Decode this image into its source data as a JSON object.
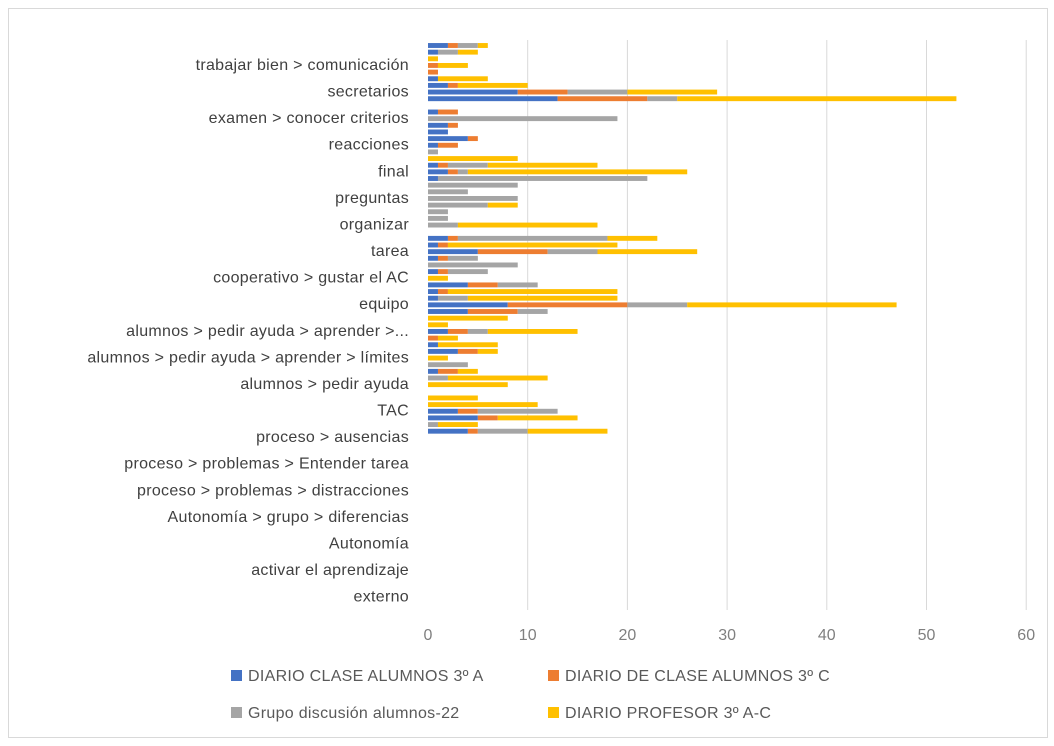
{
  "chart_data": {
    "type": "bar",
    "orientation": "horizontal",
    "stacked": true,
    "xlim": [
      0,
      60
    ],
    "x_ticks": [
      "0",
      "10",
      "20",
      "30",
      "40",
      "50",
      "60"
    ],
    "grid": "vertical",
    "legend_position": "bottom",
    "visible_category_labels": [
      "trabajar bien > comunicación",
      "secretarios",
      "examen > conocer criterios",
      "reacciones",
      "final",
      "preguntas",
      "organizar",
      "tarea",
      "cooperativo > gustar el AC",
      "equipo",
      "alumnos > pedir ayuda > aprender >...",
      "alumnos > pedir ayuda > aprender > límites",
      "alumnos > pedir ayuda",
      "TAC",
      "proceso > ausencias",
      "proceso > problemas > Entender tarea",
      "proceso > problemas > distracciones",
      "Autonomía > grupo > diferencias",
      "Autonomía",
      "activar el aprendizaje",
      "externo"
    ],
    "series": [
      {
        "name": "DIARIO CLASE ALUMNOS 3º A",
        "color": "#4472C4",
        "values": [
          2,
          1,
          0,
          0,
          0,
          1,
          2,
          9,
          13,
          0,
          1,
          0,
          2,
          2,
          4,
          1,
          0,
          0,
          1,
          2,
          1,
          0,
          0,
          0,
          0,
          0,
          0,
          0,
          0,
          2,
          1,
          5,
          1,
          0,
          1,
          0,
          4,
          1,
          1,
          8,
          4,
          0,
          0,
          2,
          0,
          1,
          3,
          0,
          0,
          1,
          0,
          0,
          0,
          0,
          0,
          3,
          5,
          0,
          4
        ]
      },
      {
        "name": "DIARIO DE CLASE ALUMNOS 3º C",
        "color": "#ED7D31",
        "values": [
          1,
          0,
          0,
          1,
          1,
          0,
          1,
          5,
          9,
          0,
          2,
          0,
          1,
          0,
          1,
          2,
          0,
          0,
          1,
          1,
          0,
          0,
          0,
          0,
          0,
          0,
          0,
          0,
          0,
          1,
          1,
          7,
          1,
          0,
          1,
          0,
          3,
          1,
          0,
          12,
          5,
          0,
          0,
          2,
          1,
          0,
          2,
          0,
          0,
          2,
          0,
          0,
          0,
          0,
          0,
          2,
          2,
          0,
          1
        ]
      },
      {
        "name": "Grupo discusión alumnos-22",
        "color": "#A5A5A5",
        "values": [
          2,
          2,
          0,
          0,
          0,
          0,
          0,
          6,
          3,
          0,
          0,
          19,
          0,
          0,
          0,
          0,
          1,
          0,
          4,
          1,
          21,
          9,
          4,
          9,
          6,
          2,
          2,
          3,
          0,
          15,
          0,
          5,
          3,
          9,
          4,
          0,
          4,
          0,
          3,
          6,
          3,
          0,
          0,
          2,
          0,
          0,
          0,
          0,
          4,
          0,
          2,
          0,
          0,
          0,
          0,
          8,
          0,
          1,
          5
        ]
      },
      {
        "name": "DIARIO PROFESOR 3º A-C",
        "color": "#FFC000",
        "values": [
          1,
          2,
          1,
          3,
          0,
          5,
          7,
          9,
          28,
          0,
          0,
          0,
          0,
          0,
          0,
          0,
          0,
          9,
          11,
          22,
          0,
          0,
          0,
          0,
          3,
          0,
          0,
          14,
          0,
          5,
          17,
          10,
          0,
          0,
          0,
          2,
          0,
          17,
          15,
          21,
          0,
          8,
          2,
          9,
          2,
          6,
          2,
          2,
          0,
          2,
          10,
          8,
          0,
          5,
          11,
          0,
          8,
          4,
          8
        ]
      }
    ]
  },
  "legend": [
    {
      "label": "DIARIO CLASE ALUMNOS 3º A",
      "color": "#4472C4"
    },
    {
      "label": "DIARIO DE CLASE ALUMNOS 3º C",
      "color": "#ED7D31"
    },
    {
      "label": "Grupo discusión alumnos-22",
      "color": "#A5A5A5"
    },
    {
      "label": "DIARIO PROFESOR 3º A-C",
      "color": "#FFC000"
    }
  ]
}
